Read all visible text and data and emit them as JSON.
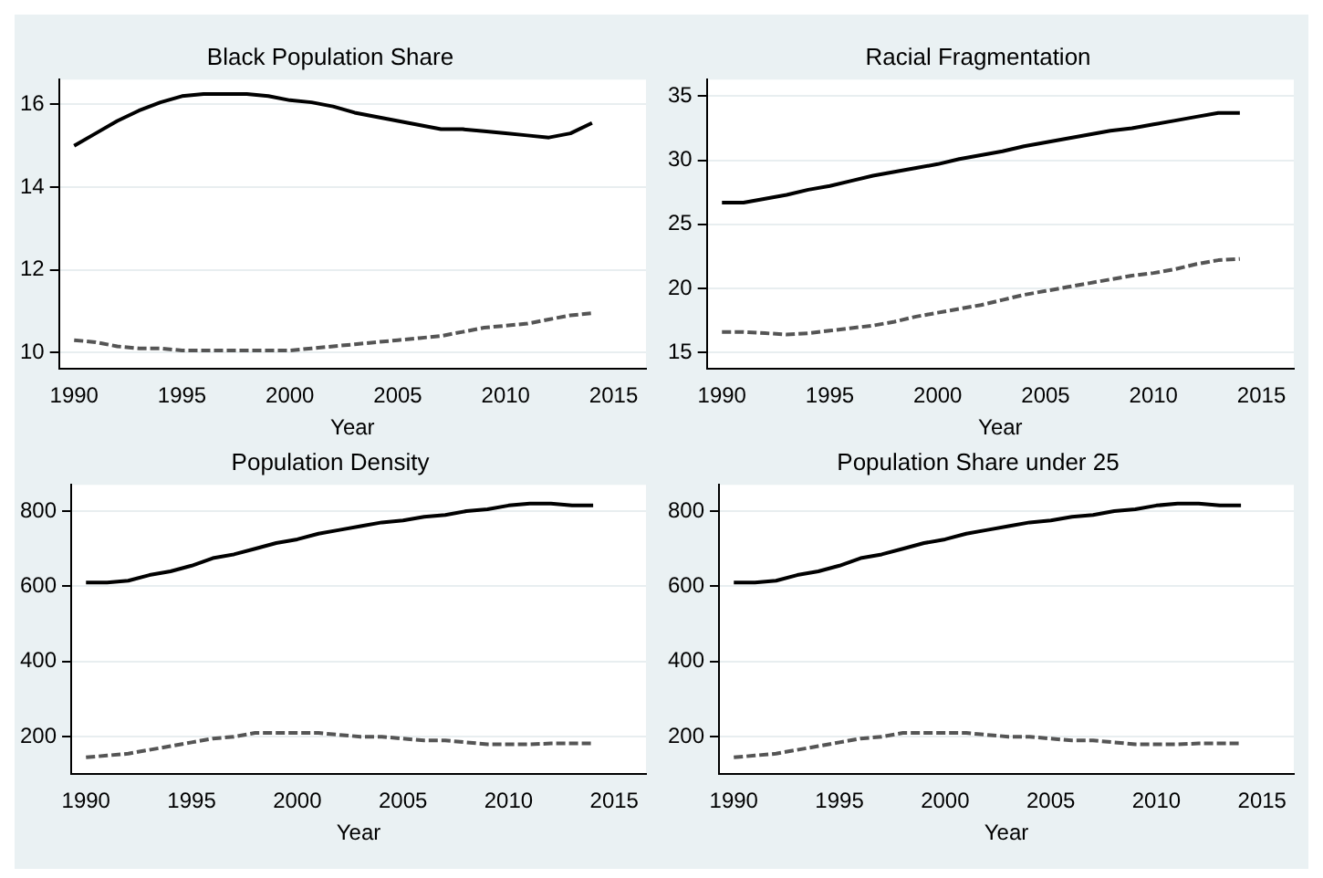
{
  "chart_data": [
    {
      "type": "line",
      "title": "Black Population Share",
      "xlabel": "Year",
      "x": [
        1990,
        1991,
        1992,
        1993,
        1994,
        1995,
        1996,
        1997,
        1998,
        1999,
        2000,
        2001,
        2002,
        2003,
        2004,
        2005,
        2006,
        2007,
        2008,
        2009,
        2010,
        2011,
        2012,
        2013,
        2014
      ],
      "xlim": [
        1989.3,
        2016.5
      ],
      "xticks": [
        1990,
        1995,
        2000,
        2005,
        2010,
        2015
      ],
      "ylim": [
        9.6,
        16.6
      ],
      "yticks": [
        10,
        12,
        14,
        16
      ],
      "grid": "y",
      "legend": false,
      "marker": "none",
      "series": [
        {
          "color": "#000000",
          "line_style": "solid",
          "values": [
            15.0,
            15.3,
            15.6,
            15.85,
            16.05,
            16.2,
            16.25,
            16.25,
            16.25,
            16.2,
            16.1,
            16.05,
            15.95,
            15.8,
            15.7,
            15.6,
            15.5,
            15.4,
            15.4,
            15.35,
            15.3,
            15.25,
            15.2,
            15.3,
            15.55
          ]
        },
        {
          "color": "#555555",
          "line_style": "dashed",
          "values": [
            10.3,
            10.25,
            10.15,
            10.1,
            10.1,
            10.05,
            10.05,
            10.05,
            10.05,
            10.05,
            10.05,
            10.1,
            10.15,
            10.2,
            10.25,
            10.3,
            10.35,
            10.4,
            10.5,
            10.6,
            10.65,
            10.7,
            10.8,
            10.9,
            10.95
          ]
        }
      ]
    },
    {
      "type": "line",
      "title": "Racial Fragmentation",
      "xlabel": "Year",
      "x": [
        1990,
        1991,
        1992,
        1993,
        1994,
        1995,
        1996,
        1997,
        1998,
        1999,
        2000,
        2001,
        2002,
        2003,
        2004,
        2005,
        2006,
        2007,
        2008,
        2009,
        2010,
        2011,
        2012,
        2013,
        2014
      ],
      "xlim": [
        1989.3,
        2016.5
      ],
      "xticks": [
        1990,
        1995,
        2000,
        2005,
        2010,
        2015
      ],
      "ylim": [
        13.7,
        36.3
      ],
      "yticks": [
        15,
        20,
        25,
        30,
        35
      ],
      "grid": "y",
      "legend": false,
      "marker": "none",
      "series": [
        {
          "color": "#000000",
          "line_style": "solid",
          "values": [
            26.7,
            26.7,
            27.0,
            27.3,
            27.7,
            28.0,
            28.4,
            28.8,
            29.1,
            29.4,
            29.7,
            30.1,
            30.4,
            30.7,
            31.1,
            31.4,
            31.7,
            32.0,
            32.3,
            32.5,
            32.8,
            33.1,
            33.4,
            33.7,
            33.7
          ]
        },
        {
          "color": "#555555",
          "line_style": "dashed",
          "values": [
            16.6,
            16.6,
            16.5,
            16.4,
            16.5,
            16.7,
            16.9,
            17.1,
            17.4,
            17.8,
            18.1,
            18.4,
            18.7,
            19.1,
            19.5,
            19.8,
            20.1,
            20.4,
            20.7,
            21.0,
            21.2,
            21.5,
            21.9,
            22.2,
            22.3
          ]
        }
      ]
    },
    {
      "type": "line",
      "title": "Population Density",
      "xlabel": "Year",
      "x": [
        1990,
        1991,
        1992,
        1993,
        1994,
        1995,
        1996,
        1997,
        1998,
        1999,
        2000,
        2001,
        2002,
        2003,
        2004,
        2005,
        2006,
        2007,
        2008,
        2009,
        2010,
        2011,
        2012,
        2013,
        2014
      ],
      "xlim": [
        1989.3,
        2016.5
      ],
      "xticks": [
        1990,
        1995,
        2000,
        2005,
        2010,
        2015
      ],
      "ylim": [
        100,
        870
      ],
      "yticks": [
        200,
        400,
        600,
        800
      ],
      "grid": "y",
      "legend": false,
      "marker": "none",
      "series": [
        {
          "color": "#000000",
          "line_style": "solid",
          "values": [
            610,
            610,
            615,
            630,
            640,
            655,
            675,
            685,
            700,
            715,
            725,
            740,
            750,
            760,
            770,
            775,
            785,
            790,
            800,
            805,
            815,
            820,
            820,
            815,
            815
          ]
        },
        {
          "color": "#555555",
          "line_style": "dashed",
          "values": [
            145,
            150,
            155,
            165,
            175,
            185,
            195,
            200,
            210,
            210,
            210,
            210,
            205,
            200,
            200,
            195,
            190,
            190,
            185,
            180,
            180,
            180,
            182,
            182,
            182
          ]
        }
      ]
    },
    {
      "type": "line",
      "title": "Population Share under 25",
      "xlabel": "Year",
      "x": [
        1990,
        1991,
        1992,
        1993,
        1994,
        1995,
        1996,
        1997,
        1998,
        1999,
        2000,
        2001,
        2002,
        2003,
        2004,
        2005,
        2006,
        2007,
        2008,
        2009,
        2010,
        2011,
        2012,
        2013,
        2014
      ],
      "xlim": [
        1989.3,
        2016.5
      ],
      "xticks": [
        1990,
        1995,
        2000,
        2005,
        2010,
        2015
      ],
      "ylim": [
        100,
        870
      ],
      "yticks": [
        200,
        400,
        600,
        800
      ],
      "grid": "y",
      "legend": false,
      "marker": "none",
      "series": [
        {
          "color": "#000000",
          "line_style": "solid",
          "values": [
            610,
            610,
            615,
            630,
            640,
            655,
            675,
            685,
            700,
            715,
            725,
            740,
            750,
            760,
            770,
            775,
            785,
            790,
            800,
            805,
            815,
            820,
            820,
            815,
            815
          ]
        },
        {
          "color": "#555555",
          "line_style": "dashed",
          "values": [
            145,
            150,
            155,
            165,
            175,
            185,
            195,
            200,
            210,
            210,
            210,
            210,
            205,
            200,
            200,
            195,
            190,
            190,
            185,
            180,
            180,
            180,
            182,
            182,
            182
          ]
        }
      ]
    }
  ]
}
